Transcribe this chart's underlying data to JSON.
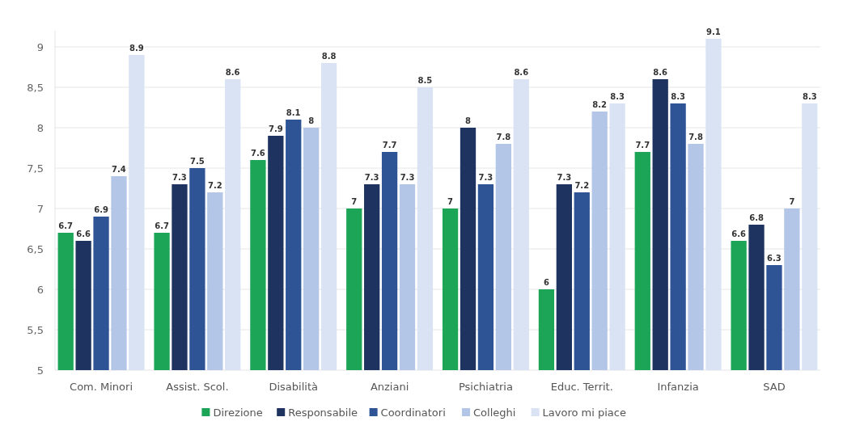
{
  "chart_data": {
    "type": "bar",
    "categories": [
      "Com. Minori",
      "Assist. Scol.",
      "Disabilità",
      "Anziani",
      "Psichiatria",
      "Educ. Territ.",
      "Infanzia",
      "SAD"
    ],
    "series": [
      {
        "name": "Direzione",
        "color": "#1ca556",
        "values": [
          6.7,
          6.7,
          7.6,
          7,
          7,
          6,
          7.7,
          6.6
        ]
      },
      {
        "name": "Responsabile",
        "color": "#1f3360",
        "values": [
          6.6,
          7.3,
          7.9,
          7.3,
          8,
          7.3,
          8.6,
          6.8
        ]
      },
      {
        "name": "Coordinatori",
        "color": "#2f5496",
        "values": [
          6.9,
          7.5,
          8.1,
          7.7,
          7.3,
          7.2,
          8.3,
          6.3
        ]
      },
      {
        "name": "Colleghi",
        "color": "#b4c6e7",
        "values": [
          7.4,
          7.2,
          8,
          7.3,
          7.8,
          8.2,
          7.8,
          7
        ]
      },
      {
        "name": "Lavoro mi piace",
        "color": "#dae3f3",
        "values": [
          8.9,
          8.6,
          8.8,
          8.5,
          8.6,
          8.3,
          9.1,
          8.3
        ]
      }
    ],
    "ylim": [
      5,
      9.2
    ],
    "yticks": [
      5,
      {
        "value": 5.5,
        "label": "5,5"
      },
      6,
      {
        "value": 6.5,
        "label": "6,5"
      },
      7,
      {
        "value": 7.5,
        "label": "7,5"
      },
      8,
      {
        "value": 8.5,
        "label": "8,5"
      },
      9
    ],
    "grid": "y",
    "legend": "bottom",
    "data_labels": true
  }
}
